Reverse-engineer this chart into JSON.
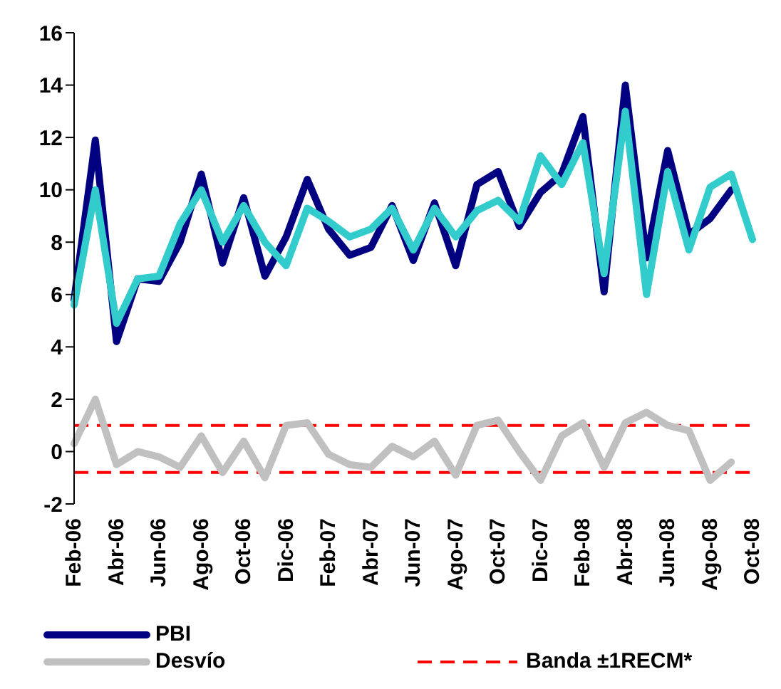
{
  "chart_data": {
    "type": "line",
    "categories": [
      "Feb-06",
      null,
      "Abr-06",
      null,
      "Jun-06",
      null,
      "Ago-06",
      null,
      "Oct-06",
      null,
      "Dic-06",
      null,
      "Feb-07",
      null,
      "Abr-07",
      null,
      "Jun-07",
      null,
      "Ago-07",
      null,
      "Oct-07",
      null,
      "Dic-07",
      null,
      "Feb-08",
      null,
      "Abr-08",
      null,
      "Jun-08",
      null,
      "Ago-08",
      null,
      "Oct-08"
    ],
    "series": [
      {
        "name": "PBI",
        "color": "#000080",
        "values": [
          5.8,
          11.9,
          4.2,
          6.6,
          6.5,
          8.0,
          10.6,
          7.2,
          9.7,
          6.7,
          8.2,
          10.4,
          8.5,
          7.5,
          7.8,
          9.4,
          7.3,
          9.5,
          7.1,
          10.2,
          10.7,
          8.6,
          9.9,
          10.6,
          12.8,
          6.1,
          14.0,
          7.4,
          11.5,
          8.3,
          8.9,
          10.0,
          null
        ]
      },
      {
        "color": "#33cccc",
        "values": [
          5.6,
          10.0,
          4.9,
          6.6,
          6.7,
          8.7,
          10.0,
          8.0,
          9.4,
          8.0,
          7.1,
          9.3,
          8.8,
          8.2,
          8.5,
          9.3,
          7.7,
          9.3,
          8.2,
          9.2,
          9.6,
          8.8,
          11.3,
          10.2,
          11.8,
          6.8,
          13.0,
          6.0,
          10.7,
          7.7,
          10.1,
          10.6,
          8.1
        ]
      },
      {
        "name": "Desvío",
        "color": "#c0c0c0",
        "values": [
          0.3,
          2.0,
          -0.5,
          0.0,
          -0.2,
          -0.6,
          0.6,
          -0.8,
          0.4,
          -1.0,
          1.0,
          1.1,
          -0.1,
          -0.5,
          -0.6,
          0.2,
          -0.2,
          0.4,
          -0.9,
          1.0,
          1.2,
          0.0,
          -1.1,
          0.6,
          1.1,
          -0.6,
          1.1,
          1.5,
          1.0,
          0.8,
          -1.1,
          -0.4,
          null
        ]
      }
    ],
    "ref_lines": [
      {
        "axis": "y",
        "value": 1.0,
        "label": "Banda ±1RECM*",
        "color": "#ff0000",
        "line_style": "dashed"
      },
      {
        "axis": "y",
        "value": -0.8,
        "label": null,
        "color": "#ff0000",
        "line_style": "dashed"
      }
    ],
    "ylim": [
      -2,
      16
    ],
    "yticks": [
      -2,
      0,
      2,
      4,
      6,
      8,
      10,
      12,
      14,
      16
    ],
    "grid": false,
    "legend": "bottom",
    "marker": "none"
  }
}
